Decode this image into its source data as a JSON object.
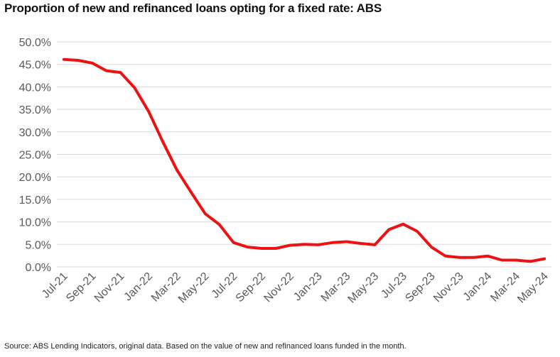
{
  "title": "Proportion of new and refinanced loans opting for a fixed rate: ABS",
  "source": "Source: ABS Lending Indicators, original data. Based on the value of new and refinanced loans funded in the month.",
  "chart_data": {
    "type": "line",
    "title": "Proportion of new and refinanced loans opting for a fixed rate: ABS",
    "xlabel": "",
    "ylabel": "",
    "ylim": [
      0,
      50
    ],
    "yticks": [
      "0.0%",
      "5.0%",
      "10.0%",
      "15.0%",
      "20.0%",
      "25.0%",
      "30.0%",
      "35.0%",
      "40.0%",
      "45.0%",
      "50.0%"
    ],
    "x": [
      "Jul-21",
      "Aug-21",
      "Sep-21",
      "Oct-21",
      "Nov-21",
      "Dec-21",
      "Jan-22",
      "Feb-22",
      "Mar-22",
      "Apr-22",
      "May-22",
      "Jun-22",
      "Jul-22",
      "Aug-22",
      "Sep-22",
      "Oct-22",
      "Nov-22",
      "Dec-22",
      "Jan-23",
      "Feb-23",
      "Mar-23",
      "Apr-23",
      "May-23",
      "Jun-23",
      "Jul-23",
      "Aug-23",
      "Sep-23",
      "Oct-23",
      "Nov-23",
      "Dec-23",
      "Jan-24",
      "Feb-24",
      "Mar-24",
      "Apr-24",
      "May-24"
    ],
    "xticks_shown": [
      "Jul-21",
      "Sep-21",
      "Nov-21",
      "Jan-22",
      "Mar-22",
      "May-22",
      "Jul-22",
      "Sep-22",
      "Nov-22",
      "Jan-23",
      "Mar-23",
      "May-23",
      "Jul-23",
      "Sep-23",
      "Nov-23",
      "Jan-24",
      "Mar-24",
      "May-24"
    ],
    "series": [
      {
        "values": [
          46.1,
          45.9,
          45.3,
          43.6,
          43.2,
          39.8,
          34.5,
          27.8,
          21.5,
          16.6,
          11.8,
          9.4,
          5.4,
          4.4,
          4.1,
          4.1,
          4.8,
          5.0,
          4.9,
          5.4,
          5.6,
          5.2,
          4.9,
          8.3,
          9.5,
          7.9,
          4.4,
          2.4,
          2.1,
          2.1,
          2.4,
          1.5,
          1.5,
          1.2,
          1.8
        ],
        "color": "#ee1111"
      }
    ],
    "grid": true,
    "legend": "none"
  }
}
